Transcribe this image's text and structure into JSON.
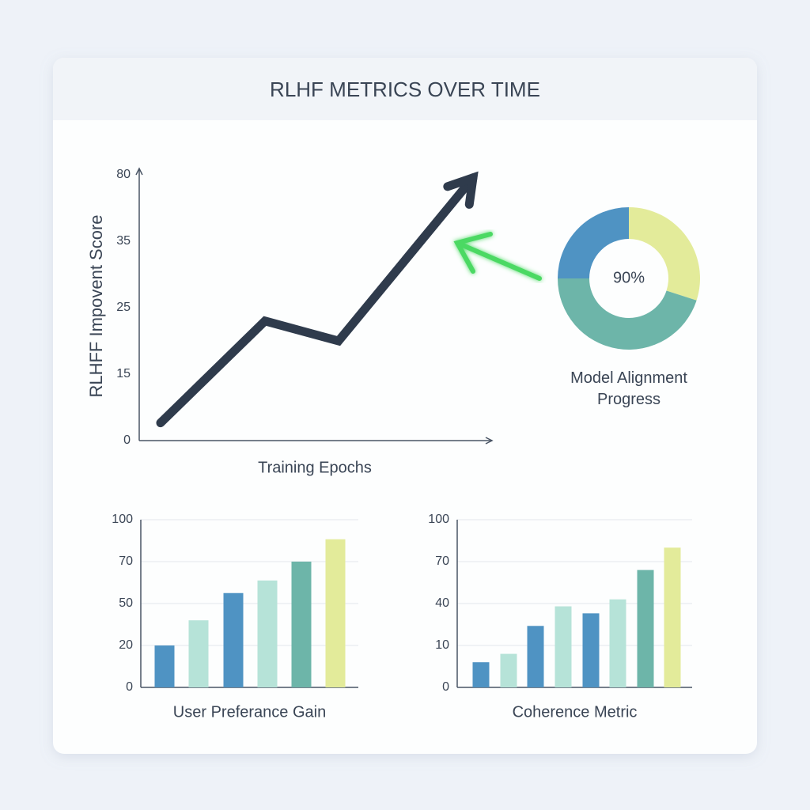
{
  "title": "RLHF METRICS OVER TIME",
  "chart_data": [
    {
      "type": "line",
      "y_label": "RLHFF Impovent Score",
      "x_label": "Training Epochs",
      "categories": [
        null,
        null,
        null,
        null
      ],
      "values": [
        4,
        23,
        20,
        78
      ],
      "color": "#2f3b4c",
      "ylim": [
        0,
        80
      ],
      "yticks": [
        0,
        15,
        25,
        35,
        80
      ]
    },
    {
      "type": "pie",
      "center_label": "90%",
      "title": "Model Alignment Progress",
      "values": [
        30,
        45,
        25
      ],
      "colors": [
        "#e3eb9a",
        "#6db5a9",
        "#4f93c3"
      ]
    },
    {
      "type": "bar",
      "x_label": "User Preferance Gain",
      "categories": [
        null,
        null,
        null,
        null,
        null,
        null
      ],
      "values": [
        20,
        38,
        55,
        61,
        70,
        86
      ],
      "colors": [
        "#4f93c3",
        "#b6e3d8",
        "#4f93c3",
        "#b6e3d8",
        "#6db5a9",
        "#e3eb9a"
      ],
      "ylim": [
        0,
        100
      ],
      "yticks": [
        0,
        20,
        50,
        70,
        100
      ],
      "grid": true
    },
    {
      "type": "bar",
      "x_label": "Coherence Metric",
      "categories": [
        null,
        null,
        null,
        null,
        null,
        null,
        null,
        null
      ],
      "values": [
        6,
        8,
        24,
        38,
        33,
        43,
        64,
        80
      ],
      "colors": [
        "#4f93c3",
        "#b6e3d8",
        "#4f93c3",
        "#b6e3d8",
        "#4f93c3",
        "#b6e3d8",
        "#6db5a9",
        "#e3eb9a"
      ],
      "ylim": [
        0,
        100
      ],
      "yticks": [
        0,
        10,
        40,
        70,
        100
      ],
      "grid": true
    }
  ]
}
